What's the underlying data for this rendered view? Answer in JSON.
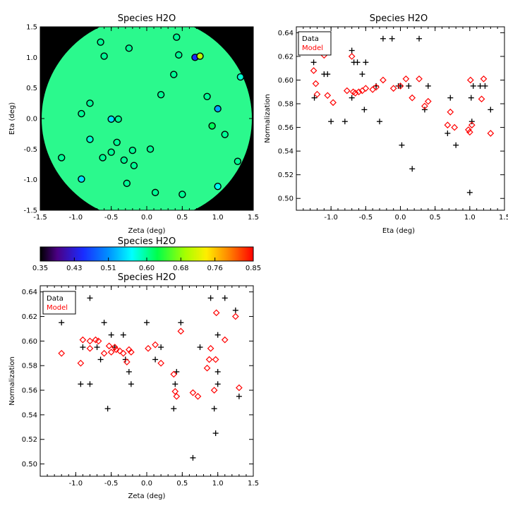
{
  "chart_data": [
    {
      "type": "map",
      "title": "Species H2O",
      "xlabel": "Zeta (deg)",
      "ylabel": "Eta (deg)",
      "xlim": [
        -1.5,
        1.5
      ],
      "ylim": [
        -1.5,
        1.5
      ],
      "x_ticks": [
        "-1.5",
        "-1.0",
        "-0.5",
        "0.0",
        "0.5",
        "1.0",
        "1.5"
      ],
      "y_ticks": [
        "-1.5",
        "-1.0",
        "-0.5",
        "0.0",
        "0.5",
        "1.0",
        "1.5"
      ],
      "background": "#000000",
      "field_color": "#2bf98d",
      "points": [
        {
          "zeta": -0.65,
          "eta": 1.25,
          "value": 0.6
        },
        {
          "zeta": -0.25,
          "eta": 1.15,
          "value": 0.6
        },
        {
          "zeta": 0.42,
          "eta": 1.33,
          "value": 0.6
        },
        {
          "zeta": -0.6,
          "eta": 1.02,
          "value": 0.6
        },
        {
          "zeta": 0.45,
          "eta": 1.04,
          "value": 0.6
        },
        {
          "zeta": 0.68,
          "eta": 1.0,
          "value": 0.45
        },
        {
          "zeta": 0.75,
          "eta": 1.02,
          "value": 0.7
        },
        {
          "zeta": 0.38,
          "eta": 0.72,
          "value": 0.6
        },
        {
          "zeta": 1.32,
          "eta": 0.68,
          "value": 0.58
        },
        {
          "zeta": 0.2,
          "eta": 0.39,
          "value": 0.6
        },
        {
          "zeta": 0.85,
          "eta": 0.36,
          "value": 0.6
        },
        {
          "zeta": -0.8,
          "eta": 0.25,
          "value": 0.6
        },
        {
          "zeta": 1.0,
          "eta": 0.16,
          "value": 0.52
        },
        {
          "zeta": -0.92,
          "eta": 0.08,
          "value": 0.6
        },
        {
          "zeta": -0.5,
          "eta": -0.01,
          "value": 0.55
        },
        {
          "zeta": -0.4,
          "eta": -0.01,
          "value": 0.6
        },
        {
          "zeta": 0.92,
          "eta": -0.12,
          "value": 0.62
        },
        {
          "zeta": 1.1,
          "eta": -0.26,
          "value": 0.6
        },
        {
          "zeta": -0.8,
          "eta": -0.34,
          "value": 0.58
        },
        {
          "zeta": -0.42,
          "eta": -0.39,
          "value": 0.6
        },
        {
          "zeta": -0.2,
          "eta": -0.52,
          "value": 0.6
        },
        {
          "zeta": 0.05,
          "eta": -0.5,
          "value": 0.6
        },
        {
          "zeta": -0.5,
          "eta": -0.55,
          "value": 0.6
        },
        {
          "zeta": -0.62,
          "eta": -0.64,
          "value": 0.6
        },
        {
          "zeta": -1.2,
          "eta": -0.64,
          "value": 0.6
        },
        {
          "zeta": -0.32,
          "eta": -0.68,
          "value": 0.6
        },
        {
          "zeta": -0.18,
          "eta": -0.77,
          "value": 0.6
        },
        {
          "zeta": 1.28,
          "eta": -0.7,
          "value": 0.6
        },
        {
          "zeta": -0.92,
          "eta": -0.99,
          "value": 0.55
        },
        {
          "zeta": -0.28,
          "eta": -1.06,
          "value": 0.6
        },
        {
          "zeta": 1.0,
          "eta": -1.11,
          "value": 0.57
        },
        {
          "zeta": 0.12,
          "eta": -1.21,
          "value": 0.6
        },
        {
          "zeta": 0.5,
          "eta": -1.24,
          "value": 0.6
        }
      ]
    },
    {
      "type": "scatter",
      "title": "Species H2O",
      "xlabel": "Eta (deg)",
      "ylabel": "Normalization",
      "xlim": [
        -1.5,
        1.5
      ],
      "ylim": [
        0.49,
        0.645
      ],
      "x_ticks": [
        "-1.0",
        "-0.5",
        "0.0",
        "0.5",
        "1.0",
        "1.5"
      ],
      "y_ticks": [
        "0.50",
        "0.52",
        "0.54",
        "0.56",
        "0.58",
        "0.60",
        "0.62",
        "0.64"
      ],
      "legend": {
        "position": "top-left",
        "entries": [
          {
            "name": "Data",
            "color": "#000000"
          },
          {
            "name": "Model",
            "color": "#ff0000"
          }
        ]
      },
      "series": [
        {
          "name": "Data",
          "marker": "plus",
          "color": "#000000",
          "points": [
            [
              -1.25,
              0.615
            ],
            [
              -1.24,
              0.585
            ],
            [
              -1.1,
              0.605
            ],
            [
              -1.05,
              0.605
            ],
            [
              -1.0,
              0.565
            ],
            [
              -0.8,
              0.565
            ],
            [
              -0.7,
              0.625
            ],
            [
              -0.67,
              0.615
            ],
            [
              -0.62,
              0.615
            ],
            [
              -0.7,
              0.585
            ],
            [
              -0.55,
              0.605
            ],
            [
              -0.52,
              0.575
            ],
            [
              -0.5,
              0.615
            ],
            [
              -0.35,
              0.595
            ],
            [
              -0.3,
              0.565
            ],
            [
              -0.25,
              0.635
            ],
            [
              -0.12,
              0.635
            ],
            [
              -0.03,
              0.595
            ],
            [
              0.02,
              0.545
            ],
            [
              0.0,
              0.595
            ],
            [
              0.12,
              0.595
            ],
            [
              0.17,
              0.525
            ],
            [
              0.27,
              0.635
            ],
            [
              0.35,
              0.575
            ],
            [
              0.4,
              0.595
            ],
            [
              0.68,
              0.555
            ],
            [
              0.72,
              0.585
            ],
            [
              0.8,
              0.545
            ],
            [
              1.0,
              0.505
            ],
            [
              1.02,
              0.585
            ],
            [
              1.03,
              0.565
            ],
            [
              1.05,
              0.595
            ],
            [
              1.15,
              0.595
            ],
            [
              1.22,
              0.595
            ],
            [
              1.3,
              0.575
            ]
          ]
        },
        {
          "name": "Model",
          "marker": "diamond",
          "color": "#ff0000",
          "points": [
            [
              -1.25,
              0.608
            ],
            [
              -1.22,
              0.597
            ],
            [
              -1.2,
              0.588
            ],
            [
              -1.1,
              0.621
            ],
            [
              -1.05,
              0.587
            ],
            [
              -0.97,
              0.581
            ],
            [
              -0.77,
              0.591
            ],
            [
              -0.7,
              0.62
            ],
            [
              -0.68,
              0.59
            ],
            [
              -0.65,
              0.589
            ],
            [
              -0.6,
              0.59
            ],
            [
              -0.55,
              0.591
            ],
            [
              -0.5,
              0.593
            ],
            [
              -0.4,
              0.592
            ],
            [
              -0.35,
              0.594
            ],
            [
              -0.25,
              0.6
            ],
            [
              -0.1,
              0.593
            ],
            [
              0.0,
              0.595
            ],
            [
              0.08,
              0.601
            ],
            [
              0.17,
              0.585
            ],
            [
              0.27,
              0.601
            ],
            [
              0.35,
              0.578
            ],
            [
              0.4,
              0.582
            ],
            [
              0.68,
              0.562
            ],
            [
              0.72,
              0.573
            ],
            [
              0.78,
              0.56
            ],
            [
              0.98,
              0.558
            ],
            [
              1.0,
              0.556
            ],
            [
              1.01,
              0.6
            ],
            [
              1.03,
              0.562
            ],
            [
              1.17,
              0.584
            ],
            [
              1.2,
              0.601
            ],
            [
              1.3,
              0.555
            ]
          ]
        }
      ]
    },
    {
      "type": "scatter",
      "title": "Species H2O",
      "xlabel": "Zeta (deg)",
      "ylabel": "Normalization",
      "xlim": [
        -1.5,
        1.5
      ],
      "ylim": [
        0.49,
        0.645
      ],
      "x_ticks": [
        "-1.0",
        "-0.5",
        "0.0",
        "0.5",
        "1.0",
        "1.5"
      ],
      "y_ticks": [
        "0.50",
        "0.52",
        "0.54",
        "0.56",
        "0.58",
        "0.60",
        "0.62",
        "0.64"
      ],
      "legend": {
        "position": "top-left",
        "entries": [
          {
            "name": "Data",
            "color": "#000000"
          },
          {
            "name": "Model",
            "color": "#ff0000"
          }
        ]
      },
      "series": [
        {
          "name": "Data",
          "marker": "plus",
          "color": "#000000",
          "points": [
            [
              -1.2,
              0.615
            ],
            [
              -0.93,
              0.565
            ],
            [
              -0.9,
              0.595
            ],
            [
              -0.8,
              0.635
            ],
            [
              -0.8,
              0.565
            ],
            [
              -0.7,
              0.595
            ],
            [
              -0.65,
              0.585
            ],
            [
              -0.6,
              0.615
            ],
            [
              -0.55,
              0.545
            ],
            [
              -0.5,
              0.605
            ],
            [
              -0.45,
              0.595
            ],
            [
              -0.33,
              0.605
            ],
            [
              -0.3,
              0.585
            ],
            [
              -0.25,
              0.575
            ],
            [
              -0.22,
              0.565
            ],
            [
              0.0,
              0.615
            ],
            [
              0.12,
              0.585
            ],
            [
              0.2,
              0.595
            ],
            [
              0.38,
              0.545
            ],
            [
              0.4,
              0.565
            ],
            [
              0.42,
              0.575
            ],
            [
              0.48,
              0.615
            ],
            [
              0.65,
              0.505
            ],
            [
              0.75,
              0.595
            ],
            [
              0.9,
              0.635
            ],
            [
              0.95,
              0.545
            ],
            [
              0.97,
              0.525
            ],
            [
              1.0,
              0.605
            ],
            [
              1.0,
              0.575
            ],
            [
              1.0,
              0.565
            ],
            [
              1.1,
              0.635
            ],
            [
              1.25,
              0.625
            ],
            [
              1.3,
              0.555
            ]
          ]
        },
        {
          "name": "Model",
          "marker": "diamond",
          "color": "#ff0000",
          "points": [
            [
              -1.2,
              0.59
            ],
            [
              -0.93,
              0.582
            ],
            [
              -0.9,
              0.601
            ],
            [
              -0.8,
              0.594
            ],
            [
              -0.8,
              0.6
            ],
            [
              -0.72,
              0.601
            ],
            [
              -0.68,
              0.6
            ],
            [
              -0.6,
              0.59
            ],
            [
              -0.53,
              0.596
            ],
            [
              -0.5,
              0.591
            ],
            [
              -0.45,
              0.595
            ],
            [
              -0.43,
              0.593
            ],
            [
              -0.38,
              0.592
            ],
            [
              -0.33,
              0.59
            ],
            [
              -0.28,
              0.583
            ],
            [
              -0.25,
              0.593
            ],
            [
              -0.22,
              0.591
            ],
            [
              0.02,
              0.594
            ],
            [
              0.12,
              0.597
            ],
            [
              0.2,
              0.582
            ],
            [
              0.38,
              0.573
            ],
            [
              0.4,
              0.559
            ],
            [
              0.42,
              0.555
            ],
            [
              0.48,
              0.608
            ],
            [
              0.65,
              0.558
            ],
            [
              0.72,
              0.555
            ],
            [
              0.85,
              0.578
            ],
            [
              0.88,
              0.585
            ],
            [
              0.9,
              0.594
            ],
            [
              0.95,
              0.56
            ],
            [
              0.97,
              0.585
            ],
            [
              0.98,
              0.623
            ],
            [
              1.1,
              0.601
            ],
            [
              1.25,
              0.62
            ],
            [
              1.3,
              0.562
            ]
          ]
        }
      ]
    }
  ],
  "colorbar": {
    "title": "Species H2O",
    "min": 0.35,
    "max": 0.85,
    "tick_labels": [
      "0.35",
      "0.43",
      "0.51",
      "0.60",
      "0.68",
      "0.76",
      "0.85"
    ]
  }
}
